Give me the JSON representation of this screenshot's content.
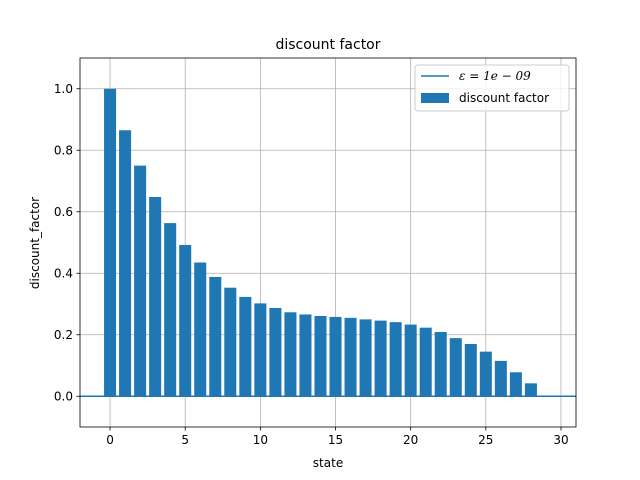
{
  "chart_data": {
    "type": "bar",
    "title": "discount factor",
    "xlabel": "state",
    "ylabel": "discount_factor",
    "xlim": [
      -2,
      31
    ],
    "ylim": [
      -0.1,
      1.1
    ],
    "xticks": [
      0,
      5,
      10,
      15,
      20,
      25,
      30
    ],
    "yticks": [
      0.0,
      0.2,
      0.4,
      0.6,
      0.8,
      1.0
    ],
    "xtick_labels": [
      "0",
      "5",
      "10",
      "15",
      "20",
      "25",
      "30"
    ],
    "ytick_labels": [
      "0.0",
      "0.2",
      "0.4",
      "0.6",
      "0.8",
      "1.0"
    ],
    "grid": true,
    "legend_position": "top-right",
    "categories": [
      0,
      1,
      2,
      3,
      4,
      5,
      6,
      7,
      8,
      9,
      10,
      11,
      12,
      13,
      14,
      15,
      16,
      17,
      18,
      19,
      20,
      21,
      22,
      23,
      24,
      25,
      26,
      27,
      28
    ],
    "series": [
      {
        "name": "discount factor",
        "kind": "bar",
        "color": "#1f77b4",
        "values": [
          1.0,
          0.865,
          0.75,
          0.648,
          0.563,
          0.492,
          0.435,
          0.388,
          0.353,
          0.323,
          0.302,
          0.287,
          0.273,
          0.266,
          0.261,
          0.258,
          0.255,
          0.25,
          0.246,
          0.241,
          0.233,
          0.223,
          0.209,
          0.189,
          0.17,
          0.145,
          0.115,
          0.078,
          0.042
        ]
      },
      {
        "name": "ε = 1e − 09",
        "kind": "line",
        "color": "#1f77b4",
        "y": 1e-09
      }
    ],
    "legend": [
      {
        "label": "ε = 1e − 09",
        "kind": "line"
      },
      {
        "label": "discount factor",
        "kind": "bar"
      }
    ]
  }
}
